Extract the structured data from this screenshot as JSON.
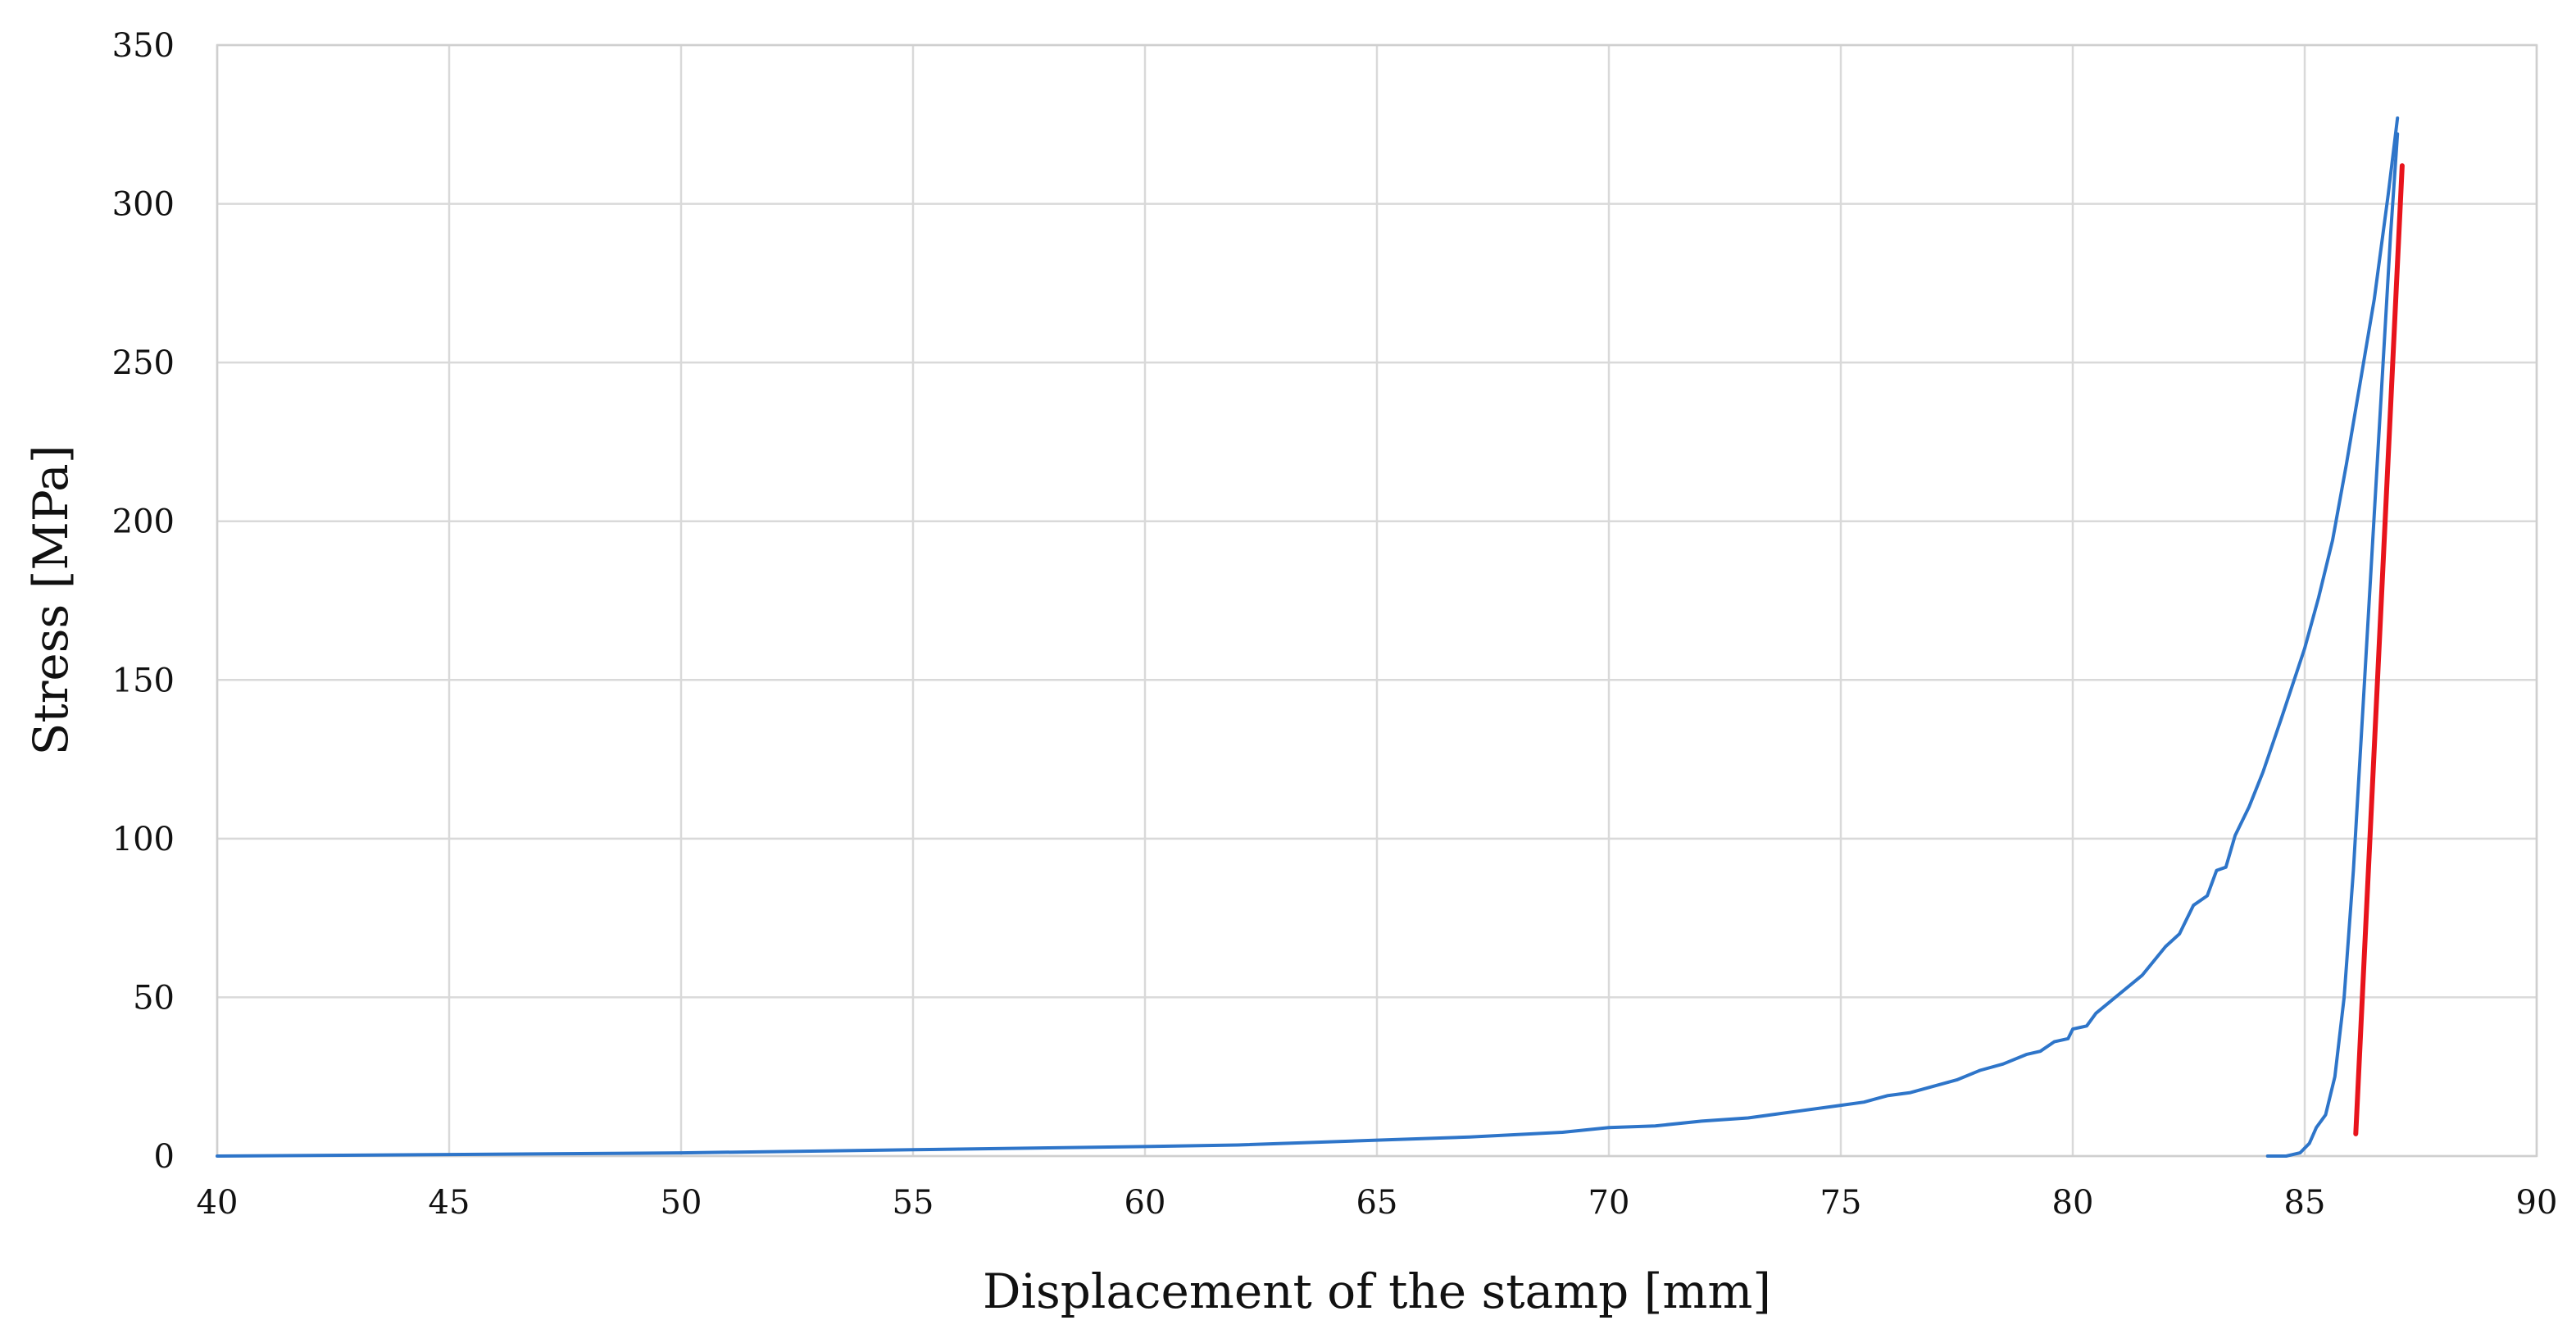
{
  "chart_data": {
    "type": "line",
    "title": "",
    "xlabel": "Displacement of the stamp [mm]",
    "ylabel": "Stress [MPa]",
    "xlim": [
      40,
      90
    ],
    "ylim": [
      0,
      350
    ],
    "xticks": [
      40,
      45,
      50,
      55,
      60,
      65,
      70,
      75,
      80,
      85,
      90
    ],
    "yticks": [
      0,
      50,
      100,
      150,
      200,
      250,
      300,
      350
    ],
    "xtick_labels": [
      "40",
      "45",
      "50",
      "55",
      "60",
      "65",
      "70",
      "75",
      "80",
      "85",
      "90"
    ],
    "ytick_labels": [
      "0",
      "50",
      "100",
      "150",
      "200",
      "250",
      "300",
      "350"
    ],
    "grid": true,
    "legend": "none",
    "series": [
      {
        "color": "#2e75c9",
        "x": [
          40,
          45,
          50,
          55,
          60,
          62,
          65,
          67,
          69,
          70,
          71,
          72,
          73,
          74,
          75,
          75.5,
          76,
          76.5,
          77,
          77.5,
          78,
          78.5,
          79,
          79.3,
          79.6,
          79.9,
          80,
          80.3,
          80.5,
          81,
          81.5,
          82,
          82.3,
          82.6,
          82.9,
          83.1,
          83.3,
          83.5,
          83.8,
          84.1,
          84.5,
          85,
          85.3,
          85.6,
          85.9,
          86.2,
          86.5,
          86.8,
          87.0
        ],
        "y": [
          0,
          0.5,
          1,
          2,
          3,
          3.5,
          5,
          6,
          7.5,
          9,
          9.5,
          11,
          12,
          14,
          16,
          17,
          19,
          20,
          22,
          24,
          27,
          29,
          32,
          33,
          36,
          37,
          40,
          41,
          45,
          51,
          57,
          66,
          70,
          79,
          82,
          90,
          91,
          101,
          110,
          121,
          138,
          160,
          176,
          194,
          218,
          244,
          270,
          303,
          327
        ]
      },
      {
        "color": "#2e75c9",
        "x": [
          84.2,
          84.6,
          84.9,
          85.1,
          85.25,
          85.45,
          85.65,
          85.85,
          86.05,
          86.25,
          86.45,
          86.65,
          86.85,
          87.0
        ],
        "y": [
          0,
          0,
          1,
          4,
          9,
          13,
          25,
          50,
          90,
          140,
          190,
          240,
          290,
          322
        ]
      },
      {
        "color": "#e8141c",
        "x": [
          86.1,
          87.1
        ],
        "y": [
          7,
          312
        ]
      }
    ]
  }
}
